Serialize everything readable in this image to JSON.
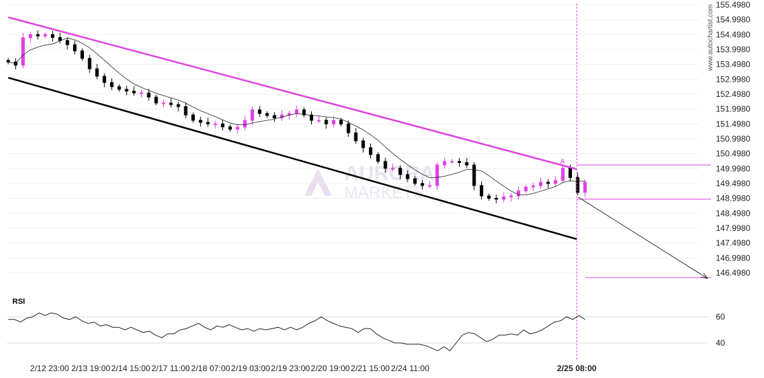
{
  "watermark": "www.autochartist.com",
  "logo_text": [
    "AURORA",
    "MARKETS"
  ],
  "chart_data": {
    "type": "candlestick",
    "price_axis": {
      "min": 146.498,
      "max": 155.498,
      "ticks": [
        155.498,
        154.998,
        154.498,
        153.998,
        153.498,
        152.998,
        152.498,
        151.998,
        151.498,
        150.998,
        150.498,
        149.998,
        149.498,
        148.998,
        148.498,
        147.998,
        147.498,
        146.998,
        146.498
      ]
    },
    "time_labels": [
      "2/12 23:00",
      "2/13 19:00",
      "2/14 15:00",
      "2/17 11:00",
      "2/18 07:00",
      "2/19 03:00",
      "2/19 23:00",
      "2/20 19:00",
      "2/21 15:00",
      "2/24 11:00",
      "2/25 08:00"
    ],
    "highlight_time": "2/25 08:00",
    "closes": [
      153.58,
      153.47,
      154.39,
      154.5,
      154.45,
      154.5,
      154.4,
      154.3,
      154.16,
      153.95,
      153.7,
      153.35,
      153.1,
      152.89,
      152.75,
      152.66,
      152.6,
      152.54,
      152.54,
      152.4,
      152.2,
      152.2,
      152.15,
      152.08,
      151.8,
      151.62,
      151.55,
      151.5,
      151.5,
      151.4,
      151.32,
      151.39,
      151.62,
      151.97,
      151.85,
      151.78,
      151.7,
      151.8,
      151.85,
      151.97,
      151.8,
      151.62,
      151.62,
      151.5,
      151.62,
      151.5,
      151.2,
      150.93,
      150.7,
      150.47,
      150.24,
      150.01,
      150.01,
      149.8,
      149.66,
      149.5,
      149.43,
      149.43,
      150.12,
      150.24,
      150.24,
      150.2,
      150.12,
      149.43,
      149.08,
      149.0,
      148.97,
      149.05,
      149.08,
      149.25,
      149.38,
      149.42,
      149.54,
      149.5,
      149.6,
      150.01,
      149.7,
      149.2,
      149.54
    ],
    "indicator_ma": true,
    "resistance_line": {
      "start": 155.08,
      "end": 149.98
    },
    "support_line": {
      "start": 153.05,
      "end": 147.63
    },
    "levels": [
      150.12,
      148.97,
      146.34
    ],
    "forecast_arrow": {
      "from": 149.04,
      "to": 146.31
    },
    "pattern_label": "A",
    "colors": {
      "up": "#e040e8",
      "down": "#000000",
      "pattern": "#dd44dd"
    },
    "rsi": {
      "label": "RSI",
      "ticks": [
        60,
        40
      ],
      "values": [
        58,
        58,
        56,
        59,
        60,
        63,
        61,
        63,
        62,
        59,
        58,
        60,
        57,
        55,
        56,
        53,
        54,
        52,
        52,
        50,
        52,
        50,
        48,
        49,
        46,
        44,
        47,
        47,
        50,
        51,
        53,
        55,
        52,
        50,
        53,
        52,
        54,
        52,
        50,
        51,
        49,
        51,
        50,
        51,
        52,
        50,
        52,
        50,
        52,
        55,
        57,
        60,
        57,
        55,
        53,
        52,
        51,
        48,
        51,
        51,
        47,
        44,
        42,
        40,
        40,
        39,
        39,
        39,
        38,
        36,
        34,
        37,
        34,
        40,
        46,
        48,
        47,
        44,
        41,
        43,
        46,
        46,
        47,
        46,
        50,
        47,
        48,
        50,
        53,
        56,
        57,
        60,
        58,
        61,
        58
      ]
    }
  }
}
